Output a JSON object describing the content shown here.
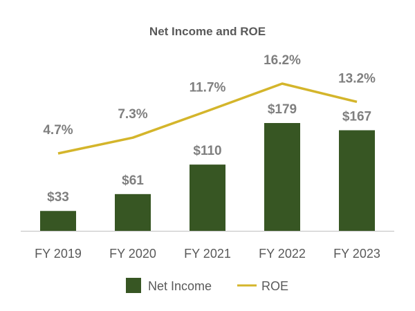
{
  "colors": {
    "bar": "#375623",
    "line": "#d4b52b",
    "axis": "#bfbfbf",
    "text": "#595959",
    "label": "#7f7f7f"
  },
  "chart_data": {
    "type": "bar",
    "title": "Net Income and ROE",
    "categories": [
      "FY 2019",
      "FY 2020",
      "FY 2021",
      "FY 2022",
      "FY 2023"
    ],
    "series": [
      {
        "name": "Net Income",
        "type": "bar",
        "values": [
          33,
          61,
          110,
          179,
          167
        ],
        "labels": [
          "$33",
          "$61",
          "$110",
          "$179",
          "$167"
        ]
      },
      {
        "name": "ROE",
        "type": "line",
        "values": [
          4.7,
          7.3,
          11.7,
          16.2,
          13.2
        ],
        "labels": [
          "4.7%",
          "7.3%",
          "11.7%",
          "16.2%",
          "13.2%"
        ]
      }
    ],
    "legend": "bottom",
    "grid": false
  }
}
